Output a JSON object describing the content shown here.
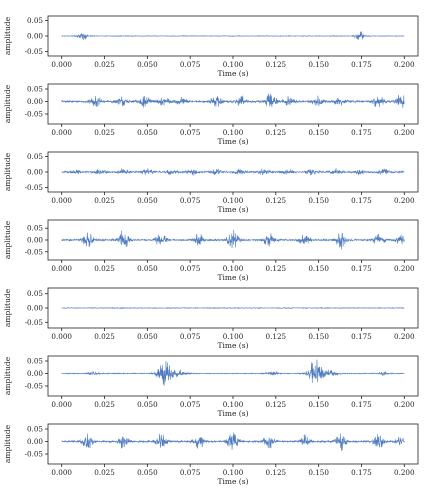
{
  "chart_data": [
    {
      "type": "line",
      "ylabel": "amplitude",
      "xlabel": "Time (s)",
      "xlim": [
        -0.008,
        0.208
      ],
      "ylim": [
        -0.065,
        0.065
      ],
      "xticks": [
        "0.000",
        "0.025",
        "0.050",
        "0.075",
        "0.100",
        "0.125",
        "0.150",
        "0.175",
        "0.200"
      ],
      "yticks": [
        "0.05",
        "0.00",
        "-0.05"
      ],
      "grid": false,
      "series": [
        {
          "bursts": [
            [
              0.012,
              0.018,
              0.0025
            ],
            [
              0.174,
              0.018,
              0.0025
            ]
          ],
          "noise": 0.0012
        }
      ]
    },
    {
      "type": "line",
      "ylabel": "amplitude",
      "xlabel": "Time (s)",
      "xlim": [
        -0.008,
        0.208
      ],
      "ylim": [
        -0.09,
        0.07
      ],
      "xticks": [
        "0.000",
        "0.025",
        "0.050",
        "0.075",
        "0.100",
        "0.125",
        "0.150",
        "0.175",
        "0.200"
      ],
      "yticks": [
        "0.05",
        "0.00",
        "-0.05"
      ],
      "grid": false,
      "series": [
        {
          "bursts": [
            [
              0.02,
              0.02,
              0.003
            ],
            [
              0.035,
              0.018,
              0.003
            ],
            [
              0.048,
              0.03,
              0.003
            ],
            [
              0.06,
              0.018,
              0.003
            ],
            [
              0.07,
              0.014,
              0.003
            ],
            [
              0.09,
              0.025,
              0.003
            ],
            [
              0.105,
              0.02,
              0.003
            ],
            [
              0.122,
              0.04,
              0.003
            ],
            [
              0.132,
              0.018,
              0.003
            ],
            [
              0.15,
              0.022,
              0.003
            ],
            [
              0.162,
              0.015,
              0.003
            ],
            [
              0.185,
              0.028,
              0.003
            ],
            [
              0.198,
              0.03,
              0.003
            ]
          ],
          "noise": 0.005
        }
      ]
    },
    {
      "type": "line",
      "ylabel": "amplitude",
      "xlabel": "Time (s)",
      "xlim": [
        -0.008,
        0.208
      ],
      "ylim": [
        -0.065,
        0.065
      ],
      "xticks": [
        "0.000",
        "0.025",
        "0.050",
        "0.075",
        "0.100",
        "0.125",
        "0.150",
        "0.175",
        "0.200"
      ],
      "yticks": [
        "0.05",
        "0.00",
        "-0.05"
      ],
      "grid": false,
      "series": [
        {
          "bursts": [
            [
              0.008,
              0.008,
              0.003
            ],
            [
              0.022,
              0.01,
              0.003
            ],
            [
              0.036,
              0.011,
              0.003
            ],
            [
              0.05,
              0.01,
              0.003
            ],
            [
              0.064,
              0.009,
              0.003
            ],
            [
              0.076,
              0.01,
              0.003
            ],
            [
              0.09,
              0.011,
              0.003
            ],
            [
              0.104,
              0.009,
              0.003
            ],
            [
              0.118,
              0.01,
              0.003
            ],
            [
              0.132,
              0.009,
              0.003
            ],
            [
              0.146,
              0.011,
              0.003
            ],
            [
              0.16,
              0.01,
              0.003
            ],
            [
              0.174,
              0.009,
              0.003
            ],
            [
              0.188,
              0.01,
              0.003
            ]
          ],
          "noise": 0.003
        }
      ]
    },
    {
      "type": "line",
      "ylabel": "amplitude",
      "xlabel": "Time (s)",
      "xlim": [
        -0.008,
        0.208
      ],
      "ylim": [
        -0.085,
        0.085
      ],
      "xticks": [
        "0.000",
        "0.025",
        "0.050",
        "0.075",
        "0.100",
        "0.125",
        "0.150",
        "0.175",
        "0.200"
      ],
      "yticks": [
        "0.05",
        "0.00",
        "-0.05"
      ],
      "grid": false,
      "series": [
        {
          "bursts": [
            [
              0.015,
              0.035,
              0.003
            ],
            [
              0.036,
              0.04,
              0.003
            ],
            [
              0.058,
              0.03,
              0.003
            ],
            [
              0.08,
              0.028,
              0.003
            ],
            [
              0.1,
              0.045,
              0.003
            ],
            [
              0.121,
              0.03,
              0.003
            ],
            [
              0.142,
              0.03,
              0.003
            ],
            [
              0.163,
              0.038,
              0.003
            ],
            [
              0.185,
              0.03,
              0.003
            ],
            [
              0.198,
              0.02,
              0.003
            ]
          ],
          "noise": 0.004
        }
      ]
    },
    {
      "type": "line",
      "ylabel": "amplitude",
      "xlabel": "Time (s)",
      "xlim": [
        -0.008,
        0.208
      ],
      "ylim": [
        -0.07,
        0.07
      ],
      "xticks": [
        "0.000",
        "0.025",
        "0.050",
        "0.075",
        "0.100",
        "0.125",
        "0.150",
        "0.175",
        "0.200"
      ],
      "yticks": [
        "0.05",
        "0.00",
        "-0.05"
      ],
      "grid": false,
      "series": [
        {
          "bursts": [],
          "noise": 0.0015
        }
      ]
    },
    {
      "type": "line",
      "ylabel": "amplitude",
      "xlabel": "Time (s)",
      "xlim": [
        -0.008,
        0.208
      ],
      "ylim": [
        -0.09,
        0.07
      ],
      "xticks": [
        "0.000",
        "0.025",
        "0.050",
        "0.075",
        "0.100",
        "0.125",
        "0.150",
        "0.175",
        "0.200"
      ],
      "yticks": [
        "0.05",
        "0.00",
        "-0.05"
      ],
      "grid": false,
      "series": [
        {
          "bursts": [
            [
              0.018,
              0.006,
              0.003
            ],
            [
              0.06,
              0.055,
              0.004
            ],
            [
              0.068,
              0.015,
              0.004
            ],
            [
              0.123,
              0.012,
              0.003
            ],
            [
              0.148,
              0.06,
              0.004
            ],
            [
              0.156,
              0.015,
              0.004
            ],
            [
              0.188,
              0.008,
              0.003
            ]
          ],
          "noise": 0.002
        }
      ]
    },
    {
      "type": "line",
      "ylabel": "amplitude",
      "xlabel": "Time (s)",
      "xlim": [
        -0.008,
        0.208
      ],
      "ylim": [
        -0.09,
        0.07
      ],
      "xticks": [
        "0.000",
        "0.025",
        "0.050",
        "0.075",
        "0.100",
        "0.125",
        "0.150",
        "0.175",
        "0.200"
      ],
      "yticks": [
        "0.05",
        "0.00",
        "-0.05"
      ],
      "grid": false,
      "series": [
        {
          "bursts": [
            [
              0.015,
              0.035,
              0.003
            ],
            [
              0.036,
              0.035,
              0.003
            ],
            [
              0.058,
              0.03,
              0.003
            ],
            [
              0.08,
              0.03,
              0.003
            ],
            [
              0.1,
              0.045,
              0.003
            ],
            [
              0.121,
              0.028,
              0.003
            ],
            [
              0.142,
              0.03,
              0.003
            ],
            [
              0.163,
              0.035,
              0.003
            ],
            [
              0.185,
              0.03,
              0.003
            ],
            [
              0.198,
              0.02,
              0.003
            ]
          ],
          "noise": 0.004
        }
      ]
    }
  ],
  "colors": {
    "signal": "#4f7bbf",
    "axis": "#222222"
  }
}
